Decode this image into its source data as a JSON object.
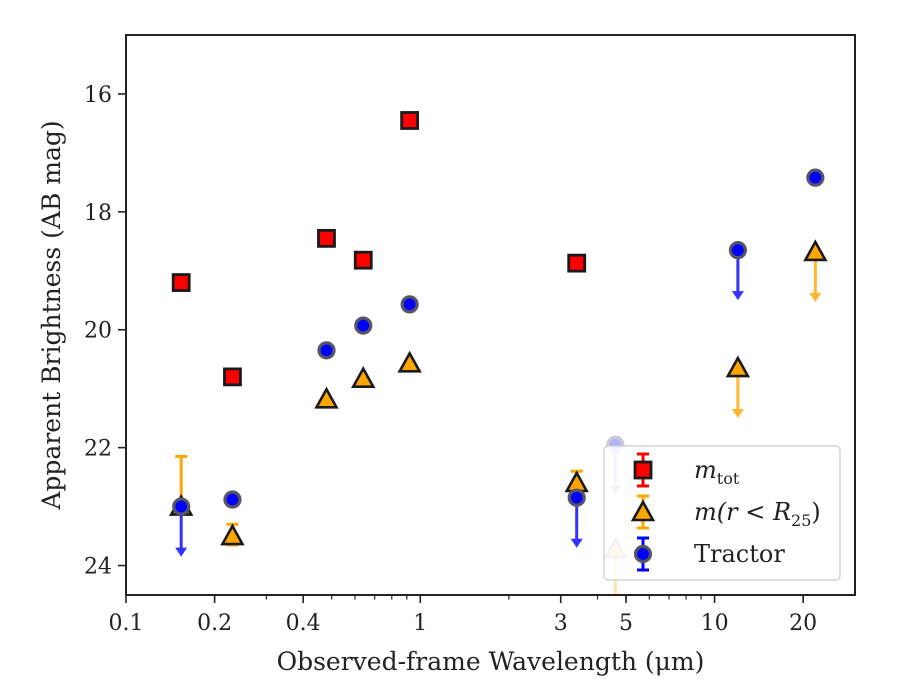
{
  "chart_data": {
    "type": "scatter",
    "xlabel": "Observed-frame Wavelength (μm)",
    "ylabel": "Apparent Brightness (AB mag)",
    "xscale": "log",
    "xlim": [
      0.1,
      30
    ],
    "ylim": [
      24.5,
      15.0
    ],
    "y_inverted": true,
    "grid": false,
    "legend_position": "lower-right",
    "x_ticks": [
      {
        "value": 0.1,
        "label": "0.1"
      },
      {
        "value": 0.2,
        "label": "0.2"
      },
      {
        "value": 0.4,
        "label": "0.4"
      },
      {
        "value": 1,
        "label": "1"
      },
      {
        "value": 3,
        "label": "3"
      },
      {
        "value": 5,
        "label": "5"
      },
      {
        "value": 10,
        "label": "10"
      },
      {
        "value": 20,
        "label": "20"
      }
    ],
    "y_ticks": [
      {
        "value": 16,
        "label": "16"
      },
      {
        "value": 18,
        "label": "18"
      },
      {
        "value": 20,
        "label": "20"
      },
      {
        "value": 22,
        "label": "22"
      },
      {
        "value": 24,
        "label": "24"
      }
    ],
    "series": [
      {
        "name": "m_tot",
        "legend_main": "m",
        "legend_sub": "tot",
        "marker": "square",
        "color": "#ff0000",
        "points": [
          {
            "x": 0.154,
            "y": 19.2
          },
          {
            "x": 0.23,
            "y": 20.8
          },
          {
            "x": 0.48,
            "y": 18.45
          },
          {
            "x": 0.64,
            "y": 18.82
          },
          {
            "x": 0.92,
            "y": 16.45
          },
          {
            "x": 3.4,
            "y": 18.87
          }
        ]
      },
      {
        "name": "m(r < R25)",
        "legend_main": "m(r < R",
        "legend_sub": "25",
        "legend_end": ")",
        "marker": "triangle",
        "color": "#ffa500",
        "points": [
          {
            "x": 0.154,
            "y": 23.0,
            "err_low": 22.15,
            "err_high": 23.0
          },
          {
            "x": 0.23,
            "y": 23.5,
            "err_low": 23.3,
            "err_high": 23.65
          },
          {
            "x": 0.48,
            "y": 21.18
          },
          {
            "x": 0.64,
            "y": 20.83
          },
          {
            "x": 0.92,
            "y": 20.57
          },
          {
            "x": 3.4,
            "y": 22.6,
            "err_low": 22.4,
            "err_high": 22.8
          },
          {
            "x": 4.6,
            "y": 23.72,
            "err_low": 23.72,
            "err_high": 24.5,
            "faded": true
          },
          {
            "x": 12,
            "y": 20.65,
            "upper_limit": true
          },
          {
            "x": 22,
            "y": 18.68,
            "upper_limit": true
          }
        ]
      },
      {
        "name": "Tractor",
        "marker": "circle",
        "color": "#0000ff",
        "points": [
          {
            "x": 0.154,
            "y": 23.0,
            "upper_limit": true
          },
          {
            "x": 0.23,
            "y": 22.88
          },
          {
            "x": 0.48,
            "y": 20.35
          },
          {
            "x": 0.64,
            "y": 19.93
          },
          {
            "x": 0.92,
            "y": 19.57
          },
          {
            "x": 3.4,
            "y": 22.85,
            "upper_limit": true
          },
          {
            "x": 4.6,
            "y": 21.95,
            "upper_limit": true,
            "faded": true
          },
          {
            "x": 12,
            "y": 18.65,
            "upper_limit": true
          },
          {
            "x": 22,
            "y": 17.42
          }
        ]
      }
    ]
  }
}
